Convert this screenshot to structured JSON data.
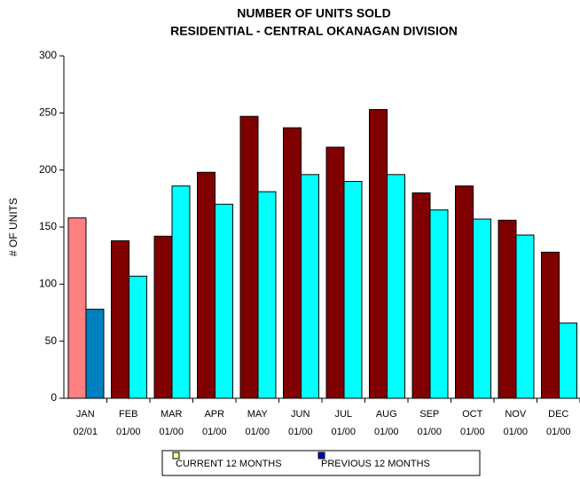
{
  "chart_data": {
    "type": "bar",
    "title": [
      "NUMBER OF UNITS SOLD",
      "RESIDENTIAL - CENTRAL OKANAGAN DIVISION"
    ],
    "y_label": "# OF UNITS",
    "categories": [
      "JAN",
      "FEB",
      "MAR",
      "APR",
      "MAY",
      "JUN",
      "JUL",
      "AUG",
      "SEP",
      "OCT",
      "NOV",
      "DEC"
    ],
    "category_dates": [
      "02/01",
      "01/00",
      "01/00",
      "01/00",
      "01/00",
      "01/00",
      "01/00",
      "01/00",
      "01/00",
      "01/00",
      "01/00",
      "01/00"
    ],
    "series": [
      {
        "name": "CURRENT 12 MONTHS",
        "color": "#800000",
        "first_color": "#ff8080",
        "legend_color": "#ffff99",
        "values": [
          158,
          138,
          142,
          198,
          247,
          237,
          220,
          253,
          180,
          186,
          156,
          128
        ]
      },
      {
        "name": "PREVIOUS 12 MONTHS",
        "color": "#00ffff",
        "first_color": "#0080c0",
        "legend_color": "#0000c0",
        "values": [
          78,
          107,
          186,
          170,
          181,
          196,
          190,
          196,
          165,
          157,
          143,
          66
        ]
      }
    ],
    "ylim": [
      0,
      300
    ],
    "yticks": [
      0,
      50,
      100,
      150,
      200,
      250,
      300
    ]
  }
}
